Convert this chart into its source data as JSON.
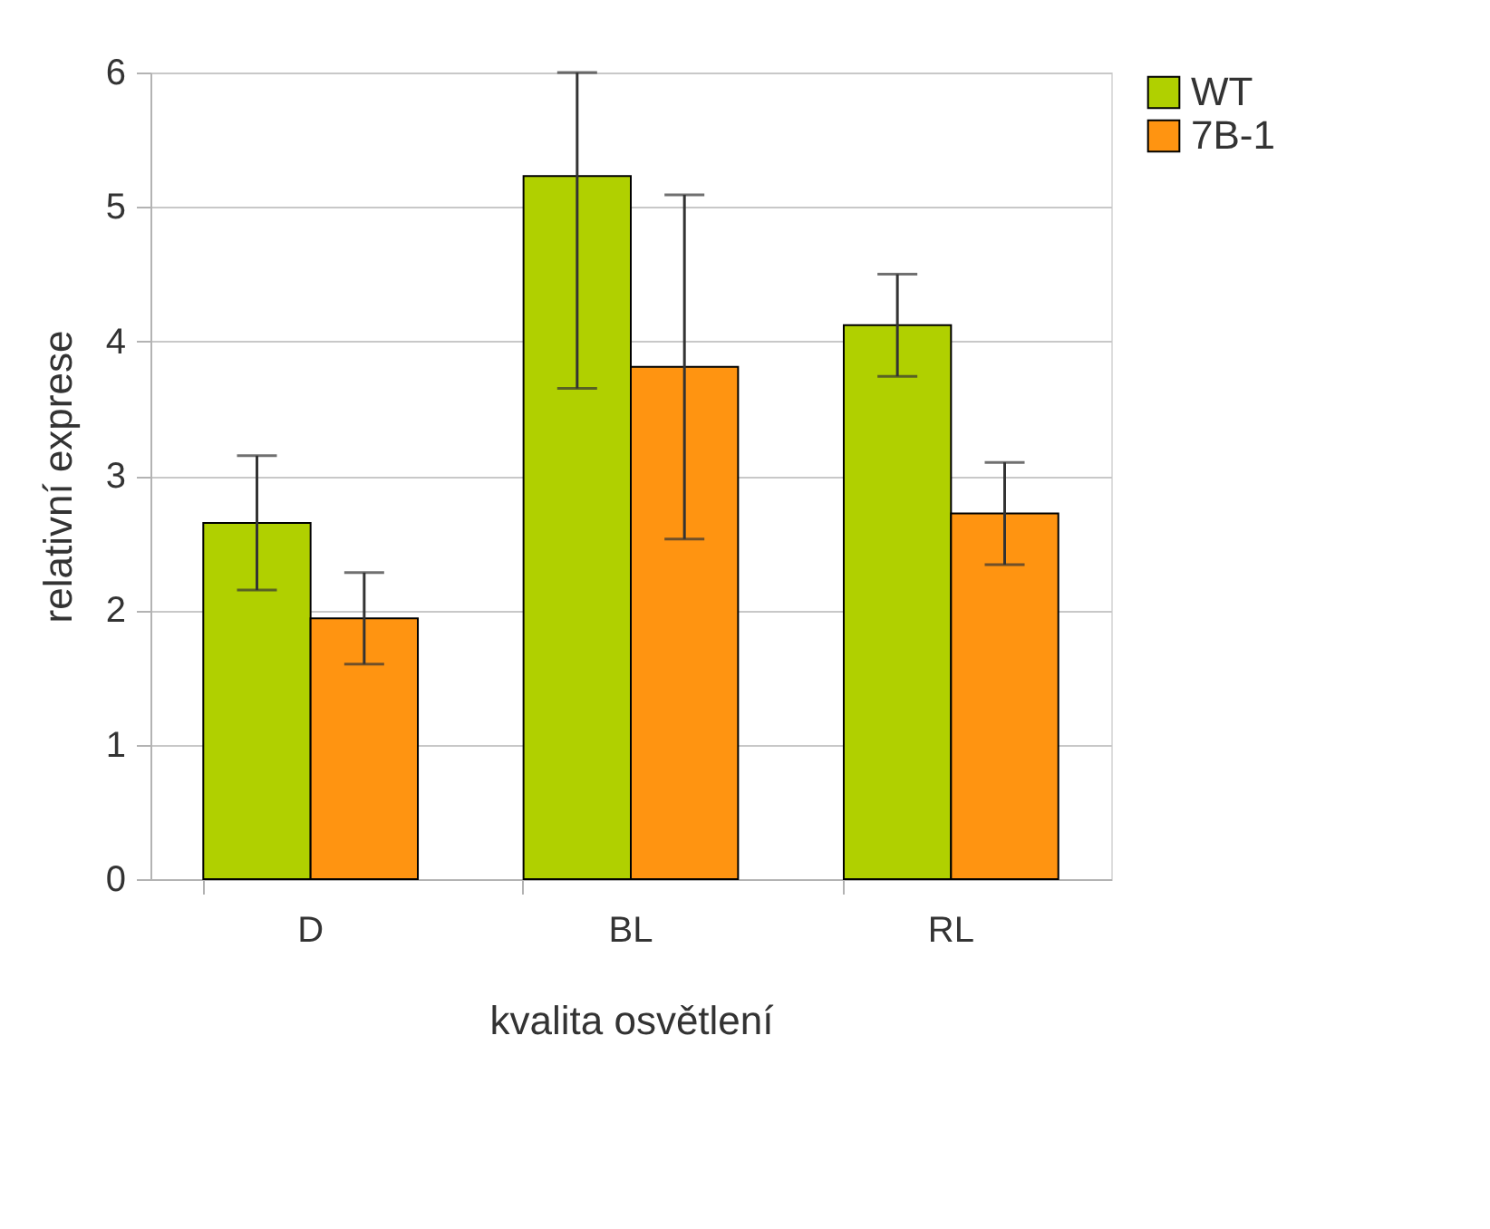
{
  "chart_data": {
    "type": "bar",
    "xlabel": "kvalita osvětlení",
    "ylabel": "relativní exprese",
    "categories": [
      "D",
      "BL",
      "RL"
    ],
    "series": [
      {
        "name": "WT",
        "color": "#b0d000",
        "values": [
          2.65,
          5.23,
          4.12
        ],
        "errors": [
          0.5,
          [
            3.65,
            6.0
          ],
          0.38
        ]
      },
      {
        "name": "7B-1",
        "color": "#ff9411",
        "values": [
          1.94,
          3.81,
          2.72
        ],
        "errors": [
          0.34,
          1.28,
          0.38
        ]
      }
    ],
    "ylim": [
      0,
      6
    ],
    "yticks": [
      0,
      1,
      2,
      3,
      4,
      5,
      6
    ],
    "grid": "y",
    "legend": "right"
  }
}
